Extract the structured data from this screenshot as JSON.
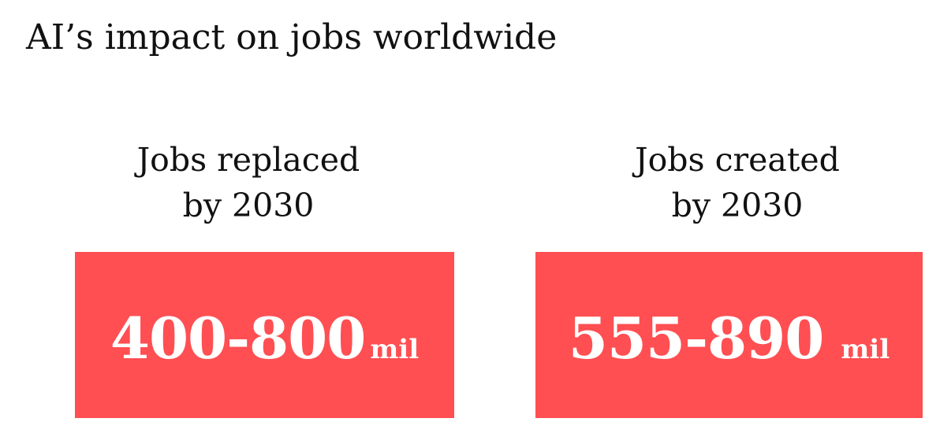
{
  "title": "AI’s impact on jobs worldwide",
  "cards": [
    {
      "label_line1": "Jobs replaced",
      "label_line2": "by 2030",
      "value": "400-800",
      "unit": "mil"
    },
    {
      "label_line1": "Jobs created",
      "label_line2": "by 2030",
      "value": "555-890",
      "unit": "mil"
    }
  ],
  "colors": {
    "box_background": "#ff4f52",
    "box_text": "#ffffff",
    "text": "#111111",
    "background": "#ffffff"
  }
}
